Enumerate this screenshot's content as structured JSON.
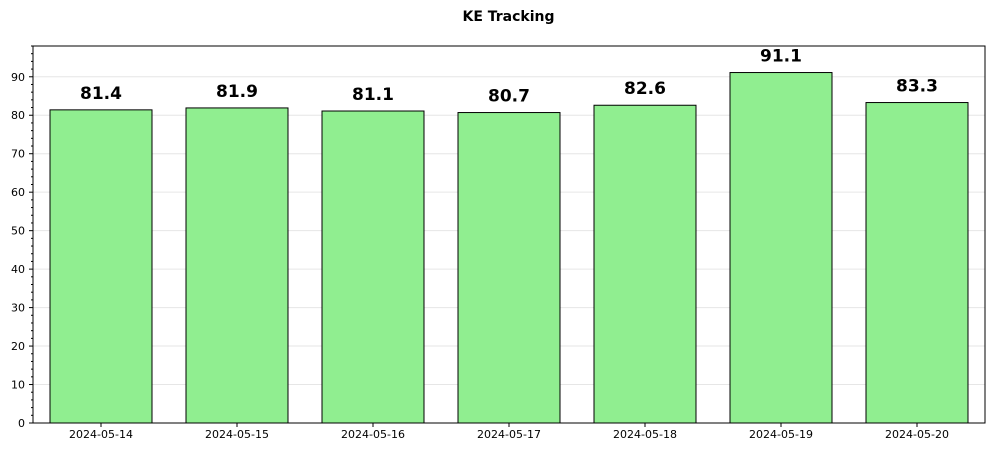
{
  "chart_data": {
    "type": "bar",
    "title": "KE Tracking",
    "xlabel": "",
    "ylabel": "",
    "categories": [
      "2024-05-14",
      "2024-05-15",
      "2024-05-16",
      "2024-05-17",
      "2024-05-18",
      "2024-05-19",
      "2024-05-20"
    ],
    "values": [
      81.4,
      81.9,
      81.1,
      80.7,
      82.6,
      91.1,
      83.3
    ],
    "value_labels": [
      "81.4",
      "81.9",
      "81.1",
      "80.7",
      "82.6",
      "91.1",
      "83.3"
    ],
    "ylim": [
      0,
      98
    ],
    "yticks": [
      0,
      10,
      20,
      30,
      40,
      50,
      60,
      70,
      80,
      90
    ],
    "ytick_labels": [
      "0",
      "10",
      "20",
      "30",
      "40",
      "50",
      "60",
      "70",
      "80",
      "90"
    ],
    "grid": true,
    "bar_color": "#90ee90",
    "bar_edge_color": "#000000"
  }
}
